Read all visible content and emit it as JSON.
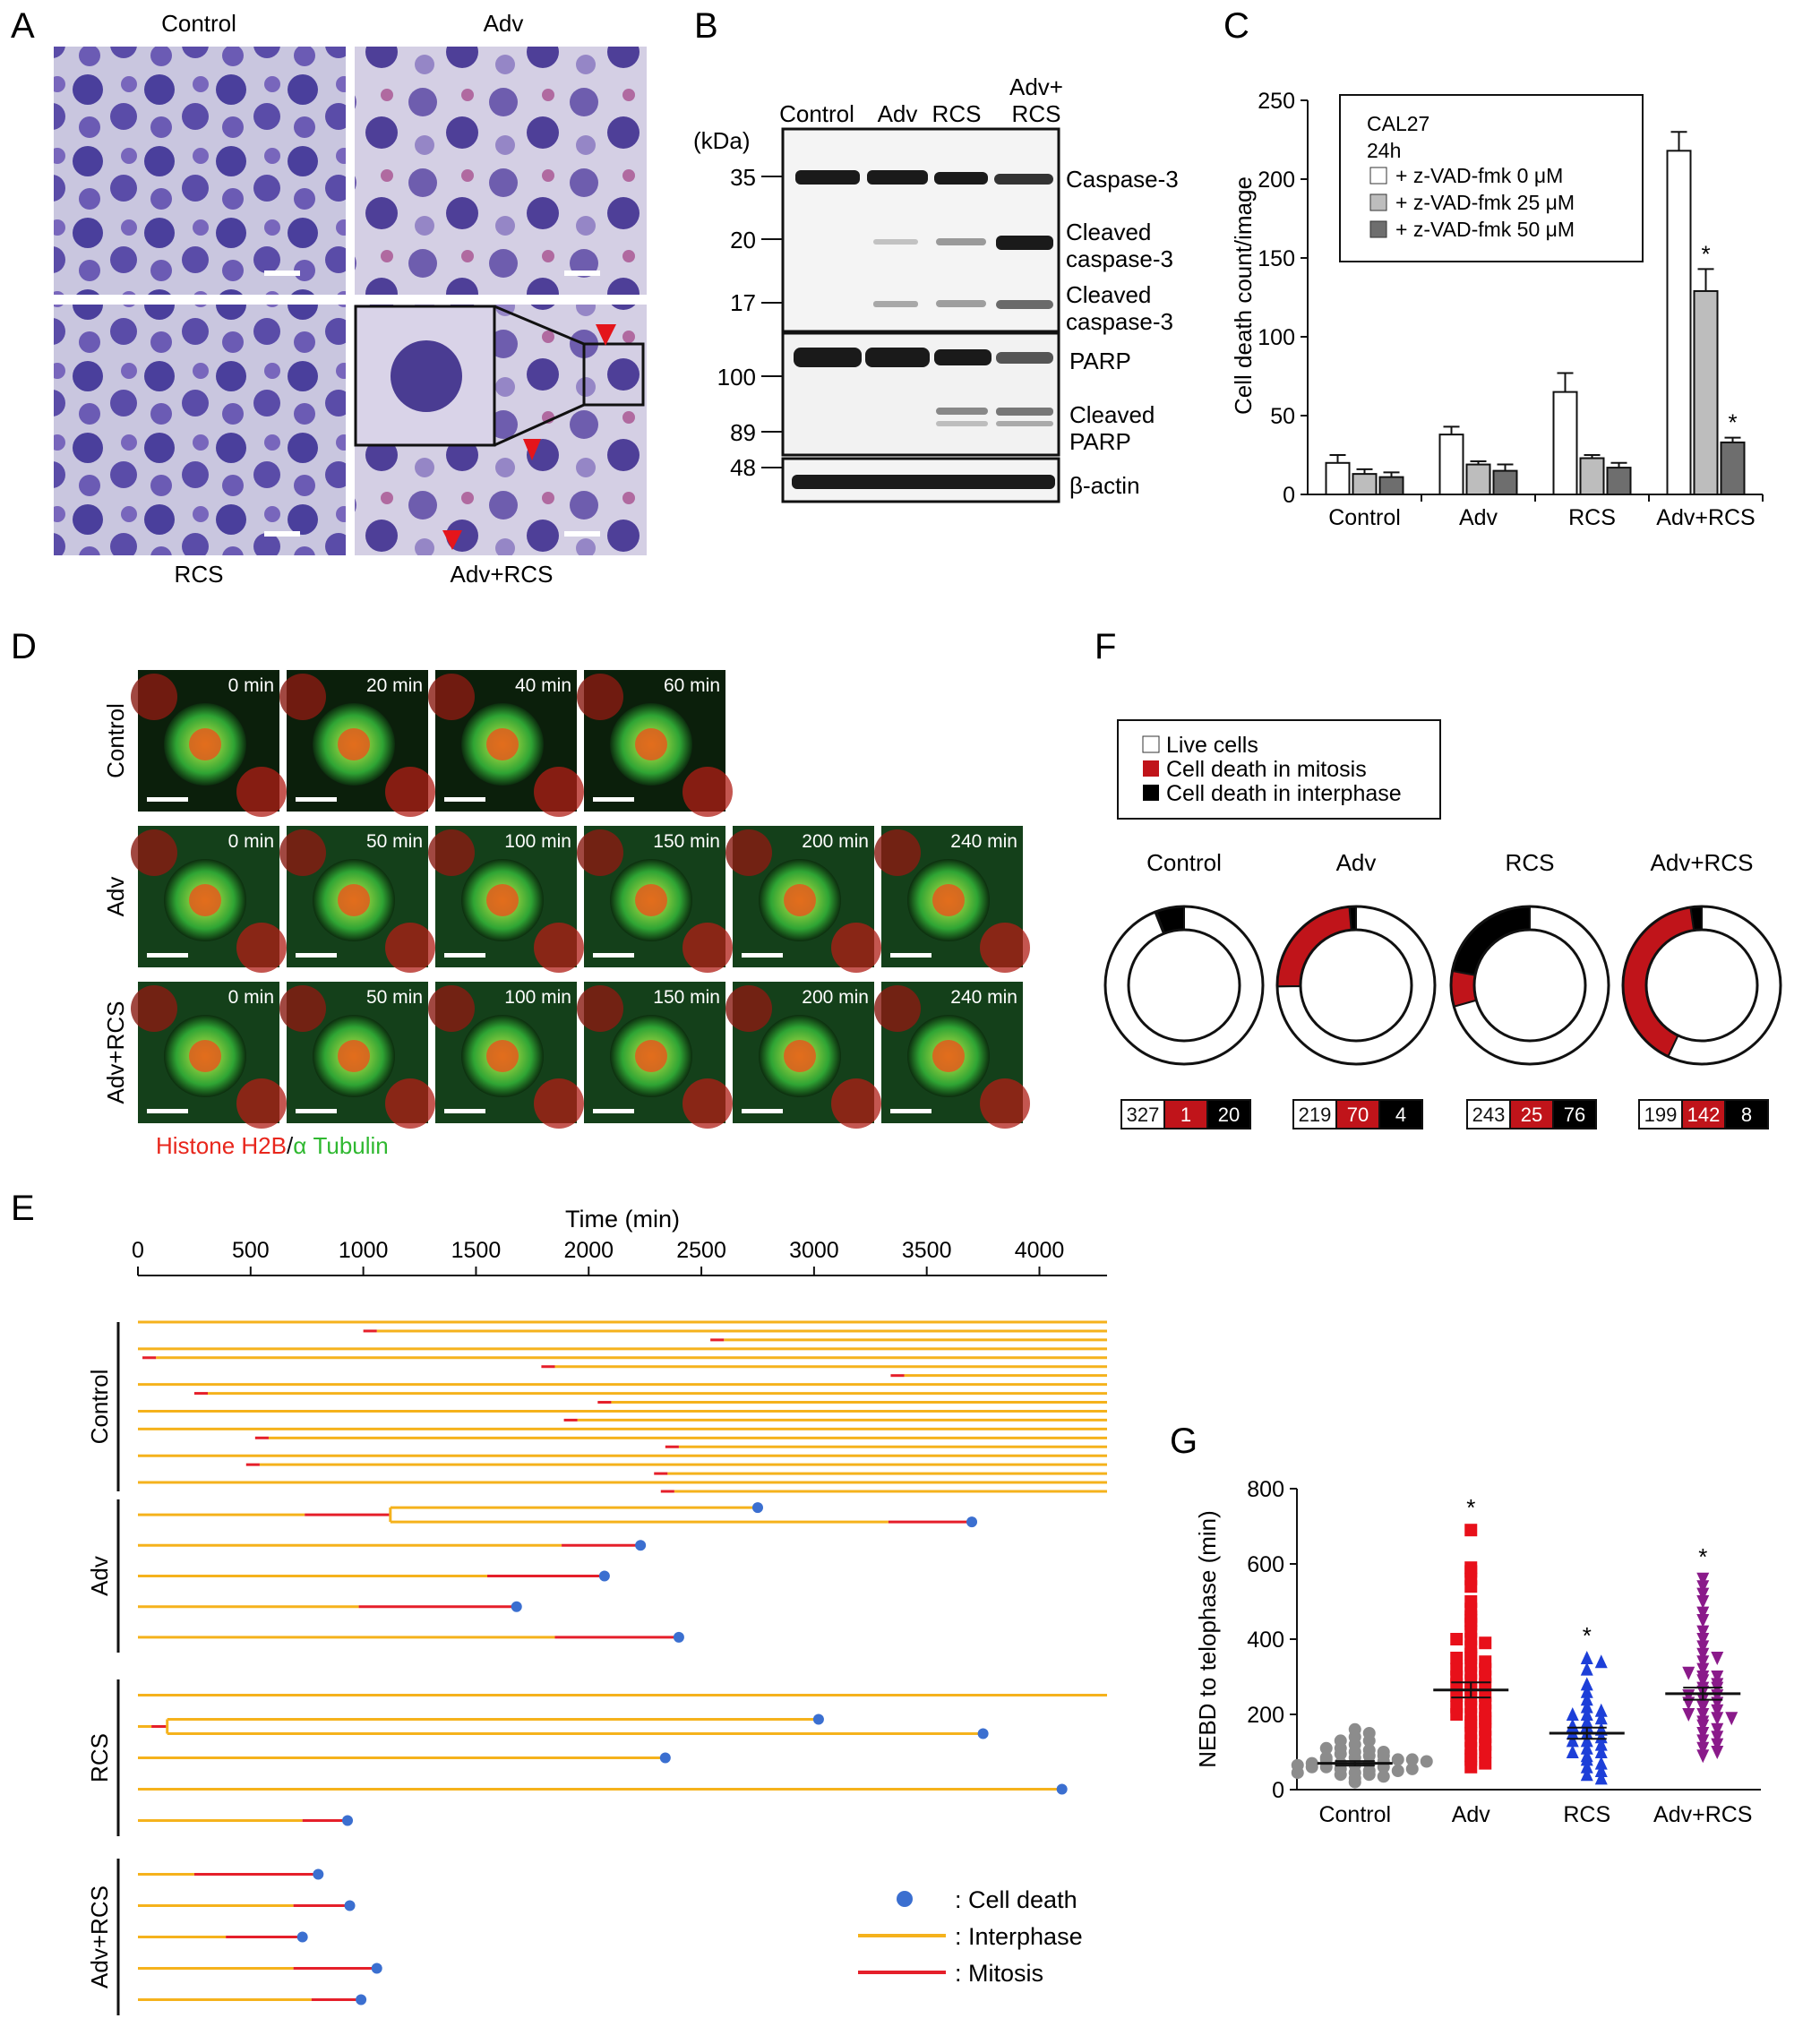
{
  "panels": {
    "A": {
      "letter": "A",
      "labels": [
        "Control",
        "Adv",
        "RCS",
        "Adv+RCS"
      ]
    },
    "B": {
      "letter": "B",
      "lanes": [
        "Control",
        "Adv",
        "RCS",
        "Adv+\nRCS"
      ],
      "kda_label": "(kDa)",
      "markers": [
        "35",
        "20",
        "17",
        "100",
        "89",
        "48"
      ],
      "bands": [
        "Caspase-3",
        "Cleaved\ncaspase-3",
        "Cleaved\ncaspase-3",
        "PARP",
        "Cleaved\nPARP",
        "β-actin"
      ]
    },
    "C": {
      "letter": "C",
      "legend_title": [
        "CAL27",
        "24h"
      ],
      "significance": "*"
    },
    "D": {
      "letter": "D",
      "rows": [
        {
          "label": "Control",
          "times": [
            "0 min",
            "20 min",
            "40 min",
            "60 min"
          ]
        },
        {
          "label": "Adv",
          "times": [
            "0 min",
            "50 min",
            "100 min",
            "150 min",
            "200 min",
            "240 min"
          ]
        },
        {
          "label": "Adv+RCS",
          "times": [
            "0 min",
            "50 min",
            "100 min",
            "150 min",
            "200 min",
            "240 min"
          ]
        }
      ],
      "stain_red": "Histone H2B",
      "stain_sep": "/",
      "stain_green": "α Tubulin",
      "colors": {
        "red": "#e8261c",
        "green": "#2fb830"
      }
    },
    "E": {
      "letter": "E",
      "groups": [
        "Control",
        "Adv",
        "RCS",
        "Adv+RCS"
      ],
      "legend": [
        ":  Cell death",
        ": Interphase",
        ": Mitosis"
      ],
      "colors": {
        "interphase": "#f5b21c",
        "mitosis": "#e51f2a",
        "death": "#3b6fd0"
      }
    },
    "F": {
      "letter": "F",
      "legend": [
        "Live cells",
        "Cell death in mitosis",
        "Cell death in interphase"
      ],
      "groups": [
        {
          "name": "Control",
          "live": 327,
          "mitosis": 1,
          "interphase": 20
        },
        {
          "name": "Adv",
          "live": 219,
          "mitosis": 70,
          "interphase": 4
        },
        {
          "name": "RCS",
          "live": 243,
          "mitosis": 25,
          "interphase": 76
        },
        {
          "name": "Adv+RCS",
          "live": 199,
          "mitosis": 142,
          "interphase": 8
        }
      ],
      "colors": {
        "live": "#ffffff",
        "mitosis": "#c0141a",
        "interphase": "#000000"
      }
    },
    "G": {
      "letter": "G",
      "significance": "*"
    }
  },
  "chart_data": [
    {
      "id": "C",
      "type": "bar",
      "title": "",
      "ylabel": "Cell death count/image",
      "xlabel": "",
      "ylim": [
        0,
        250
      ],
      "yticks": [
        0,
        50,
        100,
        150,
        200,
        250
      ],
      "categories": [
        "Control",
        "Adv",
        "RCS",
        "Adv+RCS"
      ],
      "series": [
        {
          "name": "+ z-VAD-fmk 0 μM",
          "color": "#ffffff",
          "values": [
            20,
            38,
            65,
            218
          ],
          "errors": [
            5,
            5,
            12,
            12
          ]
        },
        {
          "name": "+ z-VAD-fmk 25 μM",
          "color": "#bdbdbd",
          "values": [
            13,
            19,
            23,
            129
          ],
          "errors": [
            3,
            2,
            2,
            14
          ]
        },
        {
          "name": "+ z-VAD-fmk 50 μM",
          "color": "#6e6e6e",
          "values": [
            11,
            15,
            17,
            33
          ],
          "errors": [
            3,
            4,
            3,
            3
          ]
        }
      ],
      "significant": [
        [
          1,
          3
        ],
        [
          2,
          3
        ]
      ],
      "legend": "top-left"
    },
    {
      "id": "E",
      "type": "line",
      "title": "",
      "xlabel": "Time (min)",
      "xlim": [
        0,
        4300
      ],
      "xticks": [
        0,
        500,
        1000,
        1500,
        2000,
        2500,
        3000,
        3500,
        4000
      ],
      "ylabel": "",
      "lineages": [
        {
          "group": "Control",
          "segments": [
            {
              "row": 0,
              "x0": 0,
              "x1": 1050,
              "mit": [
                1000,
                1050
              ]
            },
            {
              "row": 1,
              "x0": 0,
              "x1": 70,
              "mit": [
                20,
                70
              ]
            },
            {
              "row": 2,
              "x0": 0,
              "x1": 320,
              "mit": [
                260,
                320
              ]
            },
            {
              "row": 3,
              "x0": 0,
              "x1": 590,
              "mit": [
                520,
                590
              ]
            },
            {
              "row": 4,
              "x0": 0,
              "x1": 550,
              "mit": [
                500,
                550
              ]
            }
          ]
        },
        {
          "group": "Adv",
          "cells": [
            {
              "start": 0,
              "mit_start": 740,
              "mit_end": 1120,
              "daughters": [
                {
                  "end": 2750,
                  "death": true
                },
                {
                  "end": 3700,
                  "death": true,
                  "mit_start": 3330
                }
              ]
            },
            {
              "start": 0,
              "mit_start": 1880,
              "end": 2230,
              "death": true
            },
            {
              "start": 0,
              "mit_start": 1550,
              "end": 2070,
              "death": true
            },
            {
              "start": 0,
              "mit_start": 980,
              "end": 1680,
              "death": true
            },
            {
              "start": 0,
              "mit_start": 1850,
              "end": 2400,
              "death": true
            }
          ]
        },
        {
          "group": "RCS",
          "cells": [
            {
              "start": 0,
              "end": 4300,
              "death": false
            },
            {
              "start": 0,
              "mit_start": 60,
              "mit_end": 130,
              "daughters": [
                {
                  "end": 3020,
                  "death": true
                },
                {
                  "end": 3750,
                  "death": true
                }
              ]
            },
            {
              "start": 0,
              "end": 2340,
              "death": true
            },
            {
              "start": 0,
              "end": 4100,
              "death": true
            },
            {
              "start": 0,
              "mit_start": 730,
              "end": 930,
              "death": true
            }
          ]
        },
        {
          "group": "Adv+RCS",
          "cells": [
            {
              "start": 0,
              "mit_start": 250,
              "end": 800,
              "death": true
            },
            {
              "start": 0,
              "mit_start": 690,
              "end": 940,
              "death": true
            },
            {
              "start": 0,
              "mit_start": 390,
              "end": 730,
              "death": true
            },
            {
              "start": 0,
              "mit_start": 690,
              "end": 1060,
              "death": true
            },
            {
              "start": 0,
              "mit_start": 770,
              "end": 990,
              "death": true
            }
          ]
        }
      ]
    },
    {
      "id": "F",
      "type": "pie",
      "title": "",
      "categories": [
        "Live cells",
        "Cell death in mitosis",
        "Cell death in interphase"
      ],
      "groups": [
        {
          "name": "Control",
          "values": [
            327,
            1,
            20
          ]
        },
        {
          "name": "Adv",
          "values": [
            219,
            70,
            4
          ]
        },
        {
          "name": "RCS",
          "values": [
            243,
            25,
            76
          ]
        },
        {
          "name": "Adv+RCS",
          "values": [
            199,
            142,
            8
          ]
        }
      ]
    },
    {
      "id": "G",
      "type": "scatter",
      "title": "",
      "ylabel": "NEBD to telophase (min)",
      "xlabel": "",
      "ylim": [
        0,
        800
      ],
      "yticks": [
        0,
        200,
        400,
        600,
        800
      ],
      "categories": [
        "Control",
        "Adv",
        "RCS",
        "Adv+RCS"
      ],
      "series": [
        {
          "name": "Control",
          "color": "#8c8c8c",
          "marker": "circle",
          "mean": 70,
          "sem": 6,
          "values": [
            20,
            30,
            40,
            45,
            50,
            55,
            60,
            60,
            65,
            70,
            70,
            75,
            80,
            80,
            85,
            90,
            95,
            100,
            105,
            110,
            120,
            130,
            140,
            150,
            160,
            40,
            50,
            60,
            70,
            80,
            90,
            55,
            65,
            75,
            85,
            45,
            35,
            100,
            110,
            130
          ]
        },
        {
          "name": "Adv",
          "color": "#e8101a",
          "marker": "square",
          "mean": 265,
          "sem": 20,
          "values": [
            690,
            590,
            580,
            560,
            540,
            500,
            480,
            460,
            440,
            420,
            400,
            390,
            380,
            360,
            350,
            340,
            330,
            320,
            310,
            300,
            290,
            280,
            270,
            260,
            250,
            240,
            230,
            220,
            210,
            200,
            190,
            180,
            170,
            160,
            150,
            140,
            130,
            120,
            110,
            100,
            90,
            80,
            70,
            60,
            300,
            250,
            200,
            350,
            400,
            450,
            280,
            220,
            180,
            320
          ]
        },
        {
          "name": "RCS",
          "color": "#1d3fd8",
          "marker": "triangle-up",
          "mean": 150,
          "sem": 15,
          "values": [
            350,
            340,
            320,
            280,
            260,
            240,
            220,
            210,
            200,
            190,
            180,
            170,
            160,
            150,
            140,
            130,
            120,
            110,
            100,
            90,
            80,
            70,
            60,
            50,
            40,
            30,
            200,
            150,
            100,
            130,
            170
          ]
        },
        {
          "name": "Adv+RCS",
          "color": "#8a1a8a",
          "marker": "triangle-down",
          "mean": 255,
          "sem": 16,
          "values": [
            560,
            540,
            520,
            500,
            470,
            450,
            420,
            400,
            380,
            360,
            340,
            320,
            300,
            290,
            280,
            270,
            260,
            250,
            240,
            230,
            220,
            210,
            200,
            190,
            180,
            170,
            160,
            150,
            140,
            130,
            120,
            110,
            100,
            90,
            300,
            250,
            200,
            350,
            270,
            230,
            310,
            190
          ]
        }
      ],
      "significant": [
        1,
        2,
        3
      ]
    }
  ]
}
